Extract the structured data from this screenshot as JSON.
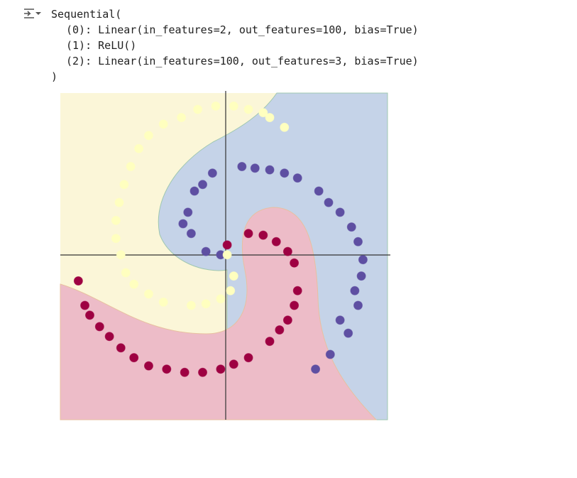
{
  "output": {
    "lines": [
      "Sequential(",
      "(0): Linear(in_features=2, out_features=100, bias=True)",
      "(1): ReLU()",
      "(2): Linear(in_features=100, out_features=3, bias=True)",
      ")"
    ]
  },
  "chart_data": {
    "type": "scatter",
    "xlim": [
      -1.01,
      0.99
    ],
    "ylim": [
      -1.01,
      0.99
    ],
    "series": [
      {
        "color": "#5e4fa2",
        "x": [
          -0.03,
          -0.12,
          -0.21,
          -0.23,
          -0.19,
          -0.08,
          0.1,
          0.27,
          0.44,
          0.57,
          0.7,
          0.81,
          0.83,
          0.81,
          0.75,
          0.64,
          0.55,
          -0.26,
          -0.14,
          0.18,
          0.36,
          0.63,
          0.77,
          0.84,
          0.79,
          0.7
        ],
        "y": [
          0.0,
          0.02,
          0.13,
          0.26,
          0.39,
          0.5,
          0.54,
          0.52,
          0.47,
          0.39,
          0.26,
          0.08,
          -0.13,
          -0.31,
          -0.48,
          -0.61,
          -0.7,
          0.19,
          0.43,
          0.53,
          0.5,
          0.32,
          0.17,
          -0.03,
          -0.22,
          -0.4
        ]
      },
      {
        "color": "#9e0142",
        "x": [
          0.01,
          0.14,
          0.31,
          0.42,
          0.44,
          0.38,
          0.27,
          0.14,
          -0.03,
          -0.25,
          -0.47,
          -0.64,
          -0.77,
          -0.86,
          -0.9,
          0.23,
          0.38,
          0.42,
          0.33,
          0.05,
          -0.14,
          -0.36,
          -0.56,
          -0.71,
          -0.83
        ],
        "y": [
          0.06,
          0.13,
          0.08,
          -0.05,
          -0.22,
          -0.4,
          -0.53,
          -0.63,
          -0.7,
          -0.72,
          -0.68,
          -0.57,
          -0.44,
          -0.31,
          -0.16,
          0.12,
          0.02,
          -0.31,
          -0.46,
          -0.67,
          -0.72,
          -0.7,
          -0.63,
          -0.5,
          -0.37
        ]
      },
      {
        "color": "#ffffbf",
        "x": [
          0.01,
          0.05,
          -0.03,
          -0.21,
          -0.38,
          -0.56,
          -0.64,
          -0.67,
          -0.62,
          -0.53,
          -0.38,
          -0.17,
          0.05,
          0.23,
          0.36,
          0.03,
          -0.12,
          -0.47,
          -0.61,
          -0.67,
          -0.65,
          -0.58,
          -0.47,
          -0.27,
          -0.06,
          0.14,
          0.27
        ],
        "y": [
          0.0,
          -0.13,
          -0.27,
          -0.31,
          -0.29,
          -0.18,
          0.0,
          0.21,
          0.43,
          0.65,
          0.8,
          0.89,
          0.91,
          0.87,
          0.78,
          -0.22,
          -0.3,
          -0.24,
          -0.11,
          0.1,
          0.32,
          0.54,
          0.73,
          0.84,
          0.91,
          0.89,
          0.84
        ]
      }
    ]
  }
}
